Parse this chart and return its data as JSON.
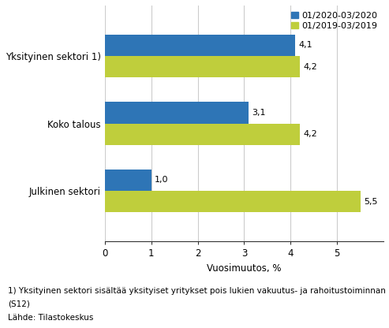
{
  "categories": [
    "Julkinen sektori",
    "Koko talous",
    "Yksityinen sektori 1)"
  ],
  "series": [
    {
      "label": "01/2020-03/2020",
      "color": "#2E75B6",
      "values": [
        1.0,
        3.1,
        4.1
      ]
    },
    {
      "label": "01/2019-03/2019",
      "color": "#BFCE3C",
      "values": [
        5.5,
        4.2,
        4.2
      ]
    }
  ],
  "xlabel": "Vuosimuutos, %",
  "xlim": [
    0,
    6
  ],
  "xticks": [
    0,
    1,
    2,
    3,
    4,
    5
  ],
  "footnote1": "1) Yksityinen sektori sisältää yksityiset yritykset pois lukien vakuutus- ja rahoitustoiminnan",
  "footnote2": "(S12)",
  "footnote3": "Lähde: Tilastokeskus",
  "bar_height": 0.32,
  "value_fontsize": 8,
  "label_fontsize": 8.5,
  "tick_fontsize": 8.5,
  "xlabel_fontsize": 8.5,
  "legend_fontsize": 8,
  "footnote_fontsize": 7.5,
  "background_color": "#FFFFFF"
}
